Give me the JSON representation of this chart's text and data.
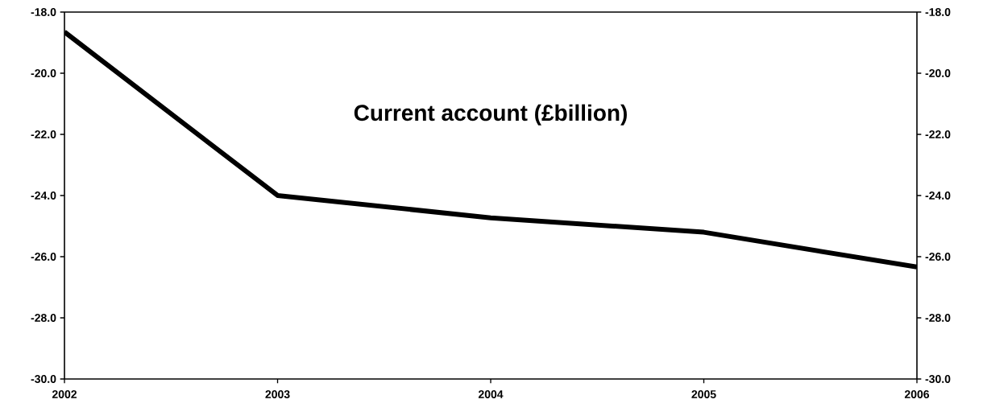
{
  "chart_data": {
    "type": "line",
    "title": "Current account (£billion)",
    "categories": [
      "2002",
      "2003",
      "2004",
      "2005",
      "2006"
    ],
    "series": [
      {
        "color": "#000000",
        "values": [
          -18.65,
          -24.0,
          -24.73,
          -25.2,
          -26.34
        ]
      }
    ],
    "ylim": [
      -30,
      -18
    ],
    "yticks": [
      {
        "value": -30,
        "label": "-30.0"
      },
      {
        "value": -28,
        "label": "-28.0"
      },
      {
        "value": -26,
        "label": "-26.0"
      },
      {
        "value": -24,
        "label": "-24.0"
      },
      {
        "value": -22,
        "label": "-22.0"
      },
      {
        "value": -20,
        "label": "-20.0"
      },
      {
        "value": -18,
        "label": "-18.0"
      }
    ],
    "y2lim": [
      -30,
      -18
    ],
    "y2ticks": [
      {
        "value": -30,
        "label": "-30.0"
      },
      {
        "value": -28,
        "label": "-28.0"
      },
      {
        "value": -26,
        "label": "-26.0"
      },
      {
        "value": -24,
        "label": "-24.0"
      },
      {
        "value": -22,
        "label": "-22.0"
      },
      {
        "value": -20,
        "label": "-20.0"
      },
      {
        "value": -18,
        "label": "-18.0"
      }
    ],
    "marker": "none",
    "line_style": "solid"
  }
}
